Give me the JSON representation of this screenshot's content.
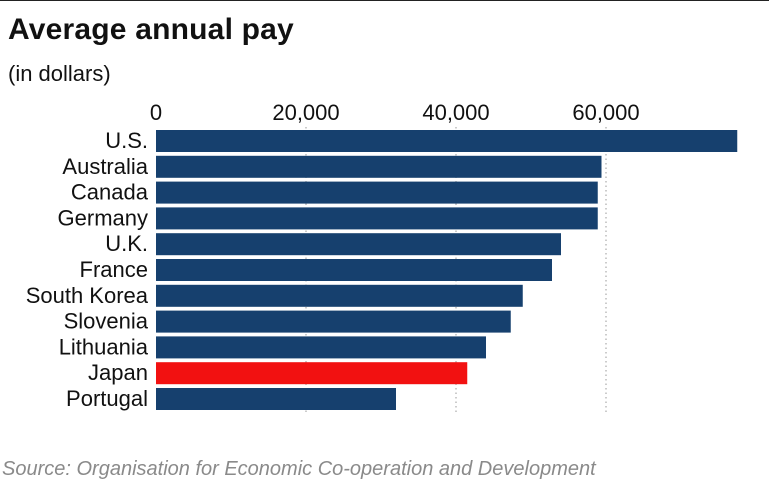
{
  "title": "Average annual pay",
  "subtitle": "(in dollars)",
  "source": "Source: Organisation for Economic Co-operation and Development",
  "colors": {
    "bar": "#16406e",
    "highlight": "#f21111",
    "grid": "#9a9a9a"
  },
  "chart_data": {
    "type": "bar",
    "orientation": "horizontal",
    "categories": [
      "U.S.",
      "Australia",
      "Canada",
      "Germany",
      "U.K.",
      "France",
      "South Korea",
      "Slovenia",
      "Lithuania",
      "Japan",
      "Portugal"
    ],
    "values": [
      77500,
      59400,
      58900,
      58900,
      54000,
      52800,
      48900,
      47300,
      44000,
      41500,
      32000
    ],
    "highlight": "Japan",
    "xlim": [
      0,
      80000
    ],
    "xticks": [
      0,
      20000,
      40000,
      60000
    ],
    "xtick_labels": [
      "0",
      "20,000",
      "40,000",
      "60,000"
    ],
    "grid": "vertical dotted",
    "axis_position": "top",
    "legend": "none"
  }
}
